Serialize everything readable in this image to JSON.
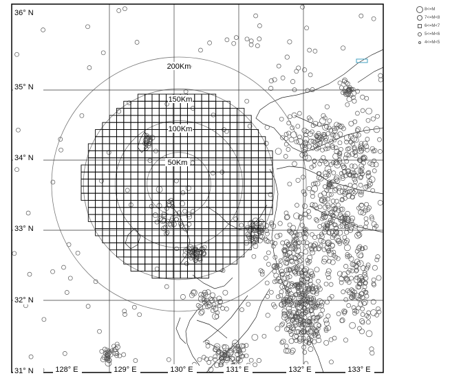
{
  "map": {
    "lat_labels": [
      "36° N",
      "35° N",
      "34° N",
      "33° N",
      "32° N",
      "31° N"
    ],
    "lon_labels": [
      "128° E",
      "129° E",
      "130° E",
      "131° E",
      "132° E",
      "133° E"
    ],
    "range_rings": [
      {
        "label": "200Km",
        "radius_km": 200
      },
      {
        "label": "150Km",
        "radius_km": 150
      },
      {
        "label": "100Km",
        "radius_km": 100
      },
      {
        "label": "50Km",
        "radius_km": 50
      }
    ]
  },
  "legend": {
    "items": [
      {
        "label": "8<=M",
        "symbol": "large-circle-icon"
      },
      {
        "label": "7<=M<8",
        "symbol": "medium-circle-icon"
      },
      {
        "label": "6<=M<7",
        "symbol": "square-icon"
      },
      {
        "label": "5<=M<6",
        "symbol": "small-circle-icon"
      },
      {
        "label": "4<=M<5",
        "symbol": "tiny-circle-icon"
      }
    ]
  },
  "colors": {
    "line": "#333333",
    "coast": "#222222",
    "marker": "#555555",
    "accent": "#40a0c0"
  }
}
